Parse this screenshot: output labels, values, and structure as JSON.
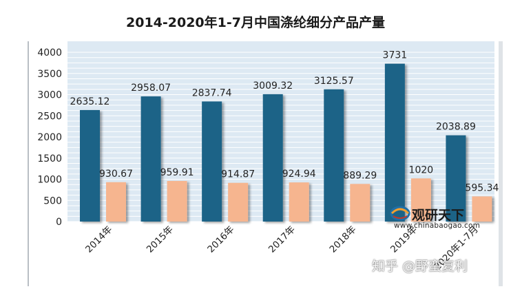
{
  "title": "2014-2020年1-7月中国涤纶细分产品产量",
  "chart_data": {
    "type": "bar",
    "title": "2014-2020年1-7月中国涤纶细分产品产量",
    "categories": [
      "2014年",
      "2015年",
      "2016年",
      "2017年",
      "2018年",
      "2019年",
      "2020年1-7月"
    ],
    "series": [
      {
        "name": "",
        "color": "#1f6487",
        "values": [
          2635.12,
          2958.07,
          2837.74,
          3009.32,
          3125.57,
          3731,
          2038.89
        ]
      },
      {
        "name": "",
        "color": "#f6b58f",
        "values": [
          930.67,
          959.91,
          914.87,
          924.94,
          889.29,
          1020,
          595.34
        ]
      }
    ],
    "ylim": [
      0,
      4000
    ],
    "yticks": [
      0,
      500,
      1000,
      1500,
      2000,
      2500,
      3000,
      3500,
      4000
    ],
    "grid": true,
    "plot_background": "#dde9f3"
  },
  "watermark": {
    "brand_name": "观研天下",
    "url": "www.chinabaogao.com",
    "zhihu": "知乎 @野蛮复利"
  }
}
